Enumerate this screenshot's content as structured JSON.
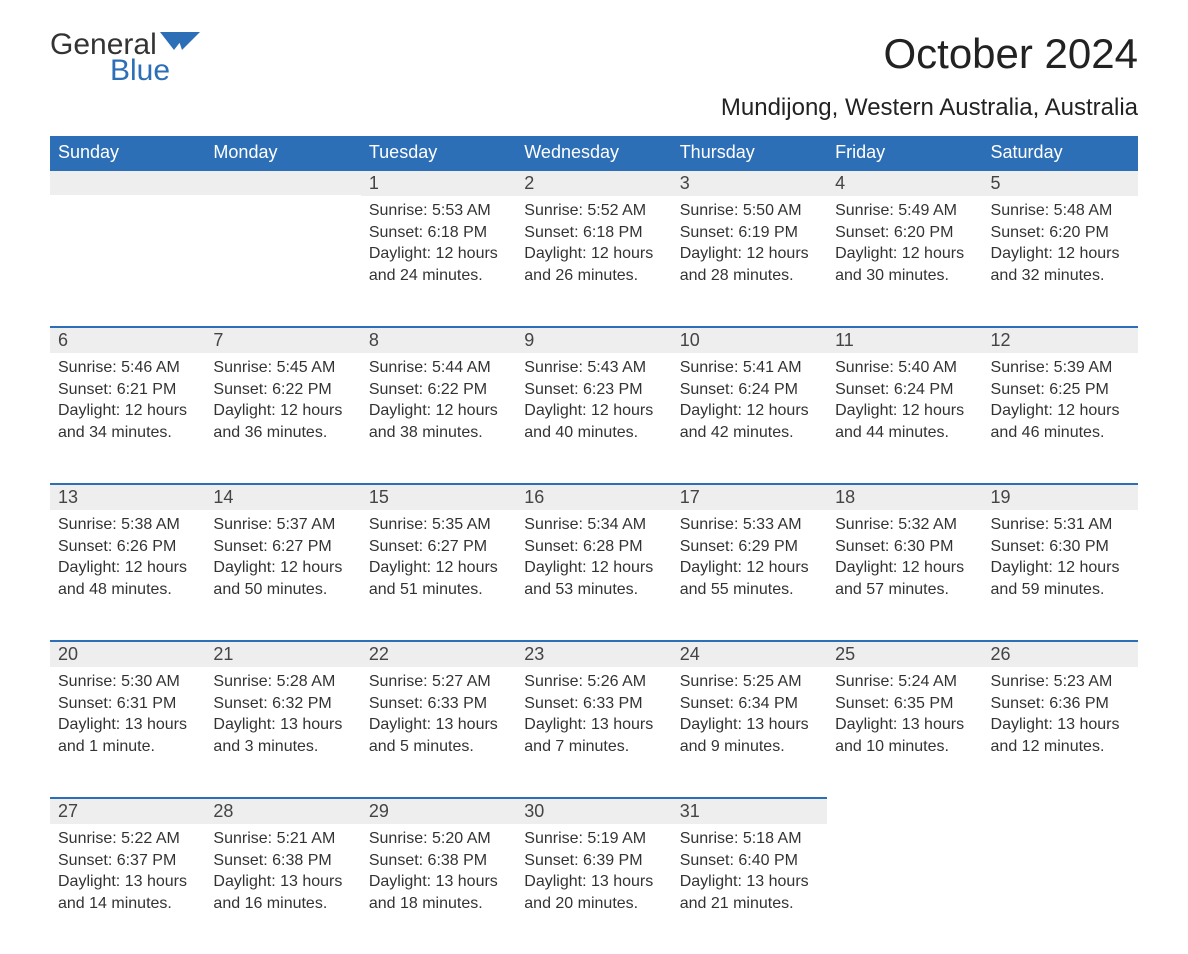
{
  "logo": {
    "part1": "General",
    "part2": "Blue",
    "text_color1": "#333333",
    "text_color2": "#2d6fb6",
    "shape_color": "#2d6fb6"
  },
  "title": "October 2024",
  "location": "Mundijong, Western Australia, Australia",
  "colors": {
    "header_bg": "#2d6fb6",
    "header_text": "#ffffff",
    "daynum_bg": "#eeeeee",
    "daynum_border": "#2d6fb6",
    "body_text": "#333333",
    "background": "#ffffff"
  },
  "typography": {
    "title_fontsize": 42,
    "location_fontsize": 24,
    "header_fontsize": 18,
    "daynum_fontsize": 18,
    "cell_fontsize": 16
  },
  "calendar": {
    "type": "table",
    "columns": 7,
    "rows": 5,
    "weekdays": [
      "Sunday",
      "Monday",
      "Tuesday",
      "Wednesday",
      "Thursday",
      "Friday",
      "Saturday"
    ]
  },
  "weeks": [
    [
      {
        "day": "",
        "lines": [
          "",
          "",
          "",
          ""
        ]
      },
      {
        "day": "",
        "lines": [
          "",
          "",
          "",
          ""
        ]
      },
      {
        "day": "1",
        "lines": [
          "Sunrise: 5:53 AM",
          "Sunset: 6:18 PM",
          "Daylight: 12 hours",
          "and 24 minutes."
        ]
      },
      {
        "day": "2",
        "lines": [
          "Sunrise: 5:52 AM",
          "Sunset: 6:18 PM",
          "Daylight: 12 hours",
          "and 26 minutes."
        ]
      },
      {
        "day": "3",
        "lines": [
          "Sunrise: 5:50 AM",
          "Sunset: 6:19 PM",
          "Daylight: 12 hours",
          "and 28 minutes."
        ]
      },
      {
        "day": "4",
        "lines": [
          "Sunrise: 5:49 AM",
          "Sunset: 6:20 PM",
          "Daylight: 12 hours",
          "and 30 minutes."
        ]
      },
      {
        "day": "5",
        "lines": [
          "Sunrise: 5:48 AM",
          "Sunset: 6:20 PM",
          "Daylight: 12 hours",
          "and 32 minutes."
        ]
      }
    ],
    [
      {
        "day": "6",
        "lines": [
          "Sunrise: 5:46 AM",
          "Sunset: 6:21 PM",
          "Daylight: 12 hours",
          "and 34 minutes."
        ]
      },
      {
        "day": "7",
        "lines": [
          "Sunrise: 5:45 AM",
          "Sunset: 6:22 PM",
          "Daylight: 12 hours",
          "and 36 minutes."
        ]
      },
      {
        "day": "8",
        "lines": [
          "Sunrise: 5:44 AM",
          "Sunset: 6:22 PM",
          "Daylight: 12 hours",
          "and 38 minutes."
        ]
      },
      {
        "day": "9",
        "lines": [
          "Sunrise: 5:43 AM",
          "Sunset: 6:23 PM",
          "Daylight: 12 hours",
          "and 40 minutes."
        ]
      },
      {
        "day": "10",
        "lines": [
          "Sunrise: 5:41 AM",
          "Sunset: 6:24 PM",
          "Daylight: 12 hours",
          "and 42 minutes."
        ]
      },
      {
        "day": "11",
        "lines": [
          "Sunrise: 5:40 AM",
          "Sunset: 6:24 PM",
          "Daylight: 12 hours",
          "and 44 minutes."
        ]
      },
      {
        "day": "12",
        "lines": [
          "Sunrise: 5:39 AM",
          "Sunset: 6:25 PM",
          "Daylight: 12 hours",
          "and 46 minutes."
        ]
      }
    ],
    [
      {
        "day": "13",
        "lines": [
          "Sunrise: 5:38 AM",
          "Sunset: 6:26 PM",
          "Daylight: 12 hours",
          "and 48 minutes."
        ]
      },
      {
        "day": "14",
        "lines": [
          "Sunrise: 5:37 AM",
          "Sunset: 6:27 PM",
          "Daylight: 12 hours",
          "and 50 minutes."
        ]
      },
      {
        "day": "15",
        "lines": [
          "Sunrise: 5:35 AM",
          "Sunset: 6:27 PM",
          "Daylight: 12 hours",
          "and 51 minutes."
        ]
      },
      {
        "day": "16",
        "lines": [
          "Sunrise: 5:34 AM",
          "Sunset: 6:28 PM",
          "Daylight: 12 hours",
          "and 53 minutes."
        ]
      },
      {
        "day": "17",
        "lines": [
          "Sunrise: 5:33 AM",
          "Sunset: 6:29 PM",
          "Daylight: 12 hours",
          "and 55 minutes."
        ]
      },
      {
        "day": "18",
        "lines": [
          "Sunrise: 5:32 AM",
          "Sunset: 6:30 PM",
          "Daylight: 12 hours",
          "and 57 minutes."
        ]
      },
      {
        "day": "19",
        "lines": [
          "Sunrise: 5:31 AM",
          "Sunset: 6:30 PM",
          "Daylight: 12 hours",
          "and 59 minutes."
        ]
      }
    ],
    [
      {
        "day": "20",
        "lines": [
          "Sunrise: 5:30 AM",
          "Sunset: 6:31 PM",
          "Daylight: 13 hours",
          "and 1 minute."
        ]
      },
      {
        "day": "21",
        "lines": [
          "Sunrise: 5:28 AM",
          "Sunset: 6:32 PM",
          "Daylight: 13 hours",
          "and 3 minutes."
        ]
      },
      {
        "day": "22",
        "lines": [
          "Sunrise: 5:27 AM",
          "Sunset: 6:33 PM",
          "Daylight: 13 hours",
          "and 5 minutes."
        ]
      },
      {
        "day": "23",
        "lines": [
          "Sunrise: 5:26 AM",
          "Sunset: 6:33 PM",
          "Daylight: 13 hours",
          "and 7 minutes."
        ]
      },
      {
        "day": "24",
        "lines": [
          "Sunrise: 5:25 AM",
          "Sunset: 6:34 PM",
          "Daylight: 13 hours",
          "and 9 minutes."
        ]
      },
      {
        "day": "25",
        "lines": [
          "Sunrise: 5:24 AM",
          "Sunset: 6:35 PM",
          "Daylight: 13 hours",
          "and 10 minutes."
        ]
      },
      {
        "day": "26",
        "lines": [
          "Sunrise: 5:23 AM",
          "Sunset: 6:36 PM",
          "Daylight: 13 hours",
          "and 12 minutes."
        ]
      }
    ],
    [
      {
        "day": "27",
        "lines": [
          "Sunrise: 5:22 AM",
          "Sunset: 6:37 PM",
          "Daylight: 13 hours",
          "and 14 minutes."
        ]
      },
      {
        "day": "28",
        "lines": [
          "Sunrise: 5:21 AM",
          "Sunset: 6:38 PM",
          "Daylight: 13 hours",
          "and 16 minutes."
        ]
      },
      {
        "day": "29",
        "lines": [
          "Sunrise: 5:20 AM",
          "Sunset: 6:38 PM",
          "Daylight: 13 hours",
          "and 18 minutes."
        ]
      },
      {
        "day": "30",
        "lines": [
          "Sunrise: 5:19 AM",
          "Sunset: 6:39 PM",
          "Daylight: 13 hours",
          "and 20 minutes."
        ]
      },
      {
        "day": "31",
        "lines": [
          "Sunrise: 5:18 AM",
          "Sunset: 6:40 PM",
          "Daylight: 13 hours",
          "and 21 minutes."
        ]
      },
      {
        "day": "",
        "lines": [
          "",
          "",
          "",
          ""
        ]
      },
      {
        "day": "",
        "lines": [
          "",
          "",
          "",
          ""
        ]
      }
    ]
  ]
}
